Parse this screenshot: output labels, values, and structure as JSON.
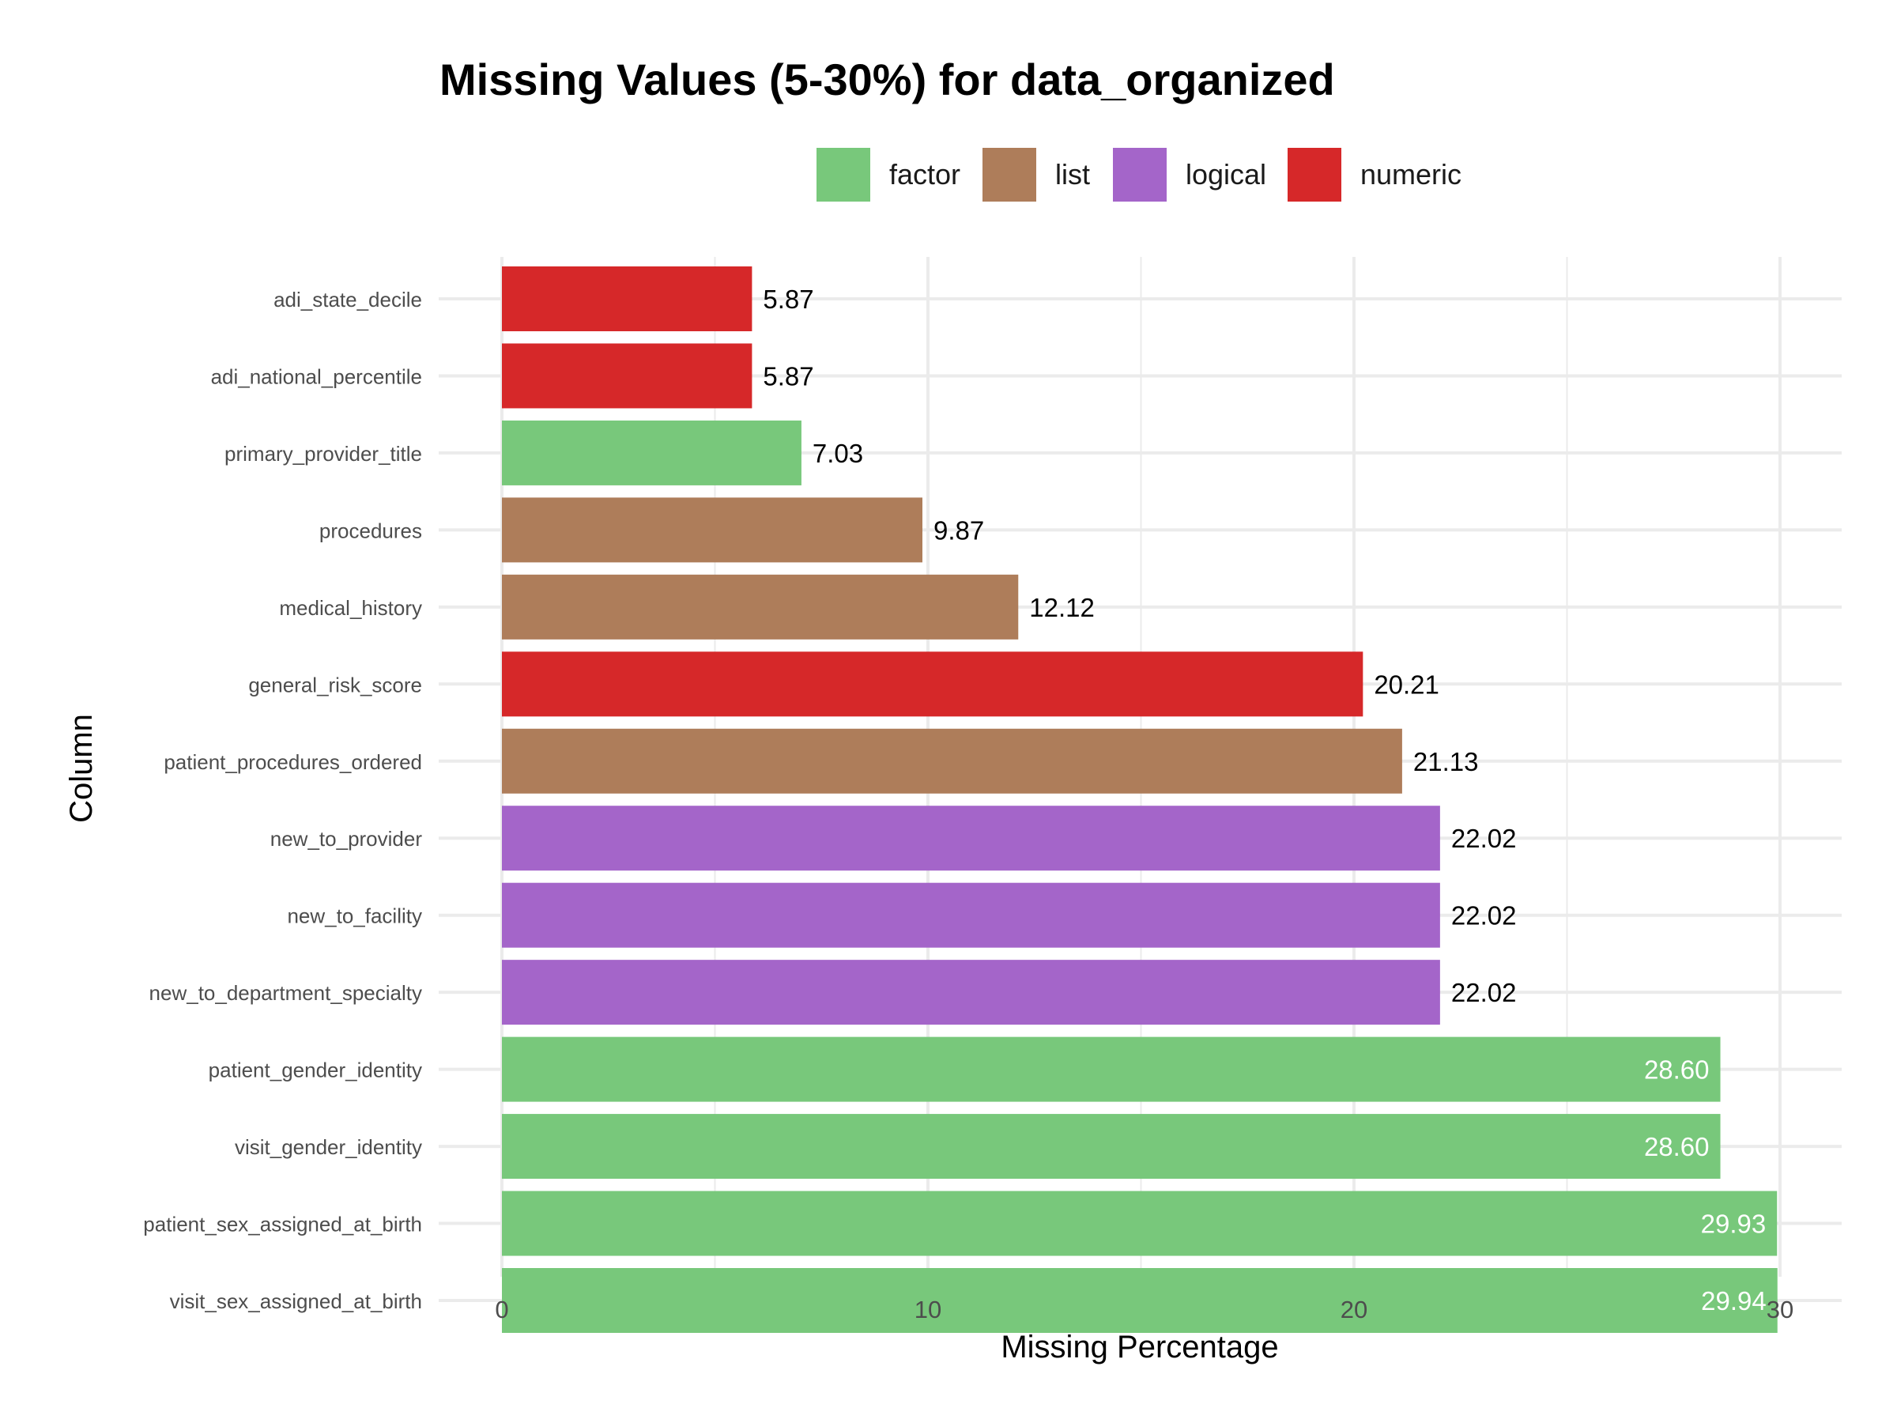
{
  "chart_data": {
    "type": "bar",
    "orientation": "horizontal",
    "title": "Missing Values (5-30%) for data_organized",
    "xlabel": "Missing Percentage",
    "ylabel": "Column",
    "xlim": [
      0,
      31.5
    ],
    "x_ticks": [
      0,
      10,
      20,
      30
    ],
    "grid": true,
    "legend_position": "top",
    "legend": [
      {
        "name": "factor",
        "color": "#78c87b"
      },
      {
        "name": "list",
        "color": "#ae7d5a"
      },
      {
        "name": "logical",
        "color": "#a465c9"
      },
      {
        "name": "numeric",
        "color": "#d62829"
      }
    ],
    "bars": [
      {
        "category": "adi_state_decile",
        "value": 5.87,
        "label": "5.87",
        "type": "numeric"
      },
      {
        "category": "adi_national_percentile",
        "value": 5.87,
        "label": "5.87",
        "type": "numeric"
      },
      {
        "category": "primary_provider_title",
        "value": 7.03,
        "label": "7.03",
        "type": "factor"
      },
      {
        "category": "procedures",
        "value": 9.87,
        "label": "9.87",
        "type": "list"
      },
      {
        "category": "medical_history",
        "value": 12.12,
        "label": "12.12",
        "type": "list"
      },
      {
        "category": "general_risk_score",
        "value": 20.21,
        "label": "20.21",
        "type": "numeric"
      },
      {
        "category": "patient_procedures_ordered",
        "value": 21.13,
        "label": "21.13",
        "type": "list"
      },
      {
        "category": "new_to_provider",
        "value": 22.02,
        "label": "22.02",
        "type": "logical"
      },
      {
        "category": "new_to_facility",
        "value": 22.02,
        "label": "22.02",
        "type": "logical"
      },
      {
        "category": "new_to_department_specialty",
        "value": 22.02,
        "label": "22.02",
        "type": "logical"
      },
      {
        "category": "patient_gender_identity",
        "value": 28.6,
        "label": "28.60",
        "type": "factor"
      },
      {
        "category": "visit_gender_identity",
        "value": 28.6,
        "label": "28.60",
        "type": "factor"
      },
      {
        "category": "patient_sex_assigned_at_birth",
        "value": 29.93,
        "label": "29.93",
        "type": "factor"
      },
      {
        "category": "visit_sex_assigned_at_birth",
        "value": 29.94,
        "label": "29.94",
        "type": "factor"
      }
    ]
  }
}
